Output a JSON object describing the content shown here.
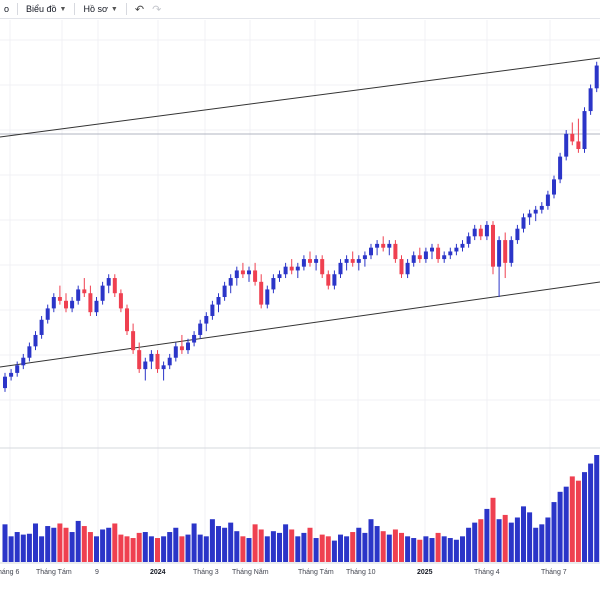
{
  "toolbar": {
    "items": [
      {
        "label": "o",
        "has_chevron": false
      },
      {
        "label": "Biểu đồ",
        "has_chevron": true
      },
      {
        "label": "Hồ sơ",
        "has_chevron": true
      }
    ],
    "undo_icon": "undo-icon",
    "redo_icon": "redo-icon"
  },
  "colors": {
    "up": "#2b35c8",
    "down": "#ef4050",
    "trendline": "#333333",
    "hline": "#b0b4c0",
    "grid": "#f0f1f4",
    "separator": "#d6d8de"
  },
  "chart_data": {
    "type": "candlestick",
    "x_axis": {
      "labels": [
        {
          "text": "háng 6",
          "bold": false
        },
        {
          "text": "Tháng Tám",
          "bold": false
        },
        {
          "text": "9",
          "bold": false
        },
        {
          "text": "2024",
          "bold": true
        },
        {
          "text": "Tháng 3",
          "bold": false
        },
        {
          "text": "Tháng Năm",
          "bold": false
        },
        {
          "text": "Tháng Tám",
          "bold": false
        },
        {
          "text": "Tháng 10",
          "bold": false
        },
        {
          "text": "2025",
          "bold": true
        },
        {
          "text": "Tháng 4",
          "bold": false
        },
        {
          "text": "Tháng 7",
          "bold": false
        }
      ]
    },
    "price_range": [
      0,
      100
    ],
    "volume_range": [
      0,
      100
    ],
    "candles": [
      [
        33,
        37,
        32,
        36,
        44
      ],
      [
        36,
        38,
        35,
        37,
        30
      ],
      [
        37,
        40,
        36,
        39,
        35
      ],
      [
        39,
        42,
        38,
        41,
        32
      ],
      [
        41,
        45,
        40,
        44,
        33
      ],
      [
        44,
        48,
        43,
        47,
        45
      ],
      [
        47,
        52,
        46,
        51,
        30
      ],
      [
        51,
        55,
        50,
        54,
        42
      ],
      [
        54,
        58,
        53,
        57,
        40
      ],
      [
        57,
        60,
        55,
        56,
        45
      ],
      [
        56,
        58,
        53,
        54,
        40
      ],
      [
        54,
        57,
        53,
        56,
        35
      ],
      [
        56,
        60,
        55,
        59,
        48
      ],
      [
        59,
        62,
        57,
        58,
        42
      ],
      [
        58,
        60,
        52,
        53,
        35
      ],
      [
        53,
        57,
        52,
        56,
        30
      ],
      [
        56,
        61,
        55,
        60,
        38
      ],
      [
        60,
        63,
        58,
        62,
        40
      ],
      [
        62,
        63,
        57,
        58,
        45
      ],
      [
        58,
        59,
        53,
        54,
        32
      ],
      [
        54,
        55,
        47,
        48,
        30
      ],
      [
        48,
        50,
        42,
        43,
        28
      ],
      [
        43,
        45,
        37,
        38,
        34
      ],
      [
        38,
        41,
        35,
        40,
        35
      ],
      [
        40,
        43,
        38,
        42,
        30
      ],
      [
        42,
        43,
        37,
        38,
        28
      ],
      [
        38,
        40,
        35,
        39,
        30
      ],
      [
        39,
        42,
        38,
        41,
        35
      ],
      [
        41,
        45,
        40,
        44,
        40
      ],
      [
        44,
        47,
        42,
        43,
        30
      ],
      [
        43,
        46,
        42,
        45,
        32
      ],
      [
        45,
        48,
        44,
        47,
        45
      ],
      [
        47,
        51,
        46,
        50,
        32
      ],
      [
        50,
        53,
        48,
        52,
        30
      ],
      [
        52,
        56,
        51,
        55,
        50
      ],
      [
        55,
        58,
        53,
        57,
        42
      ],
      [
        57,
        61,
        56,
        60,
        40
      ],
      [
        60,
        63,
        58,
        62,
        46
      ],
      [
        62,
        65,
        60,
        64,
        36
      ],
      [
        64,
        66,
        62,
        63,
        30
      ],
      [
        63,
        65,
        61,
        64,
        28
      ],
      [
        64,
        66,
        60,
        61,
        44
      ],
      [
        61,
        63,
        54,
        55,
        38
      ],
      [
        55,
        60,
        54,
        59,
        30
      ],
      [
        59,
        63,
        58,
        62,
        36
      ],
      [
        62,
        64,
        61,
        63,
        34
      ],
      [
        63,
        66,
        62,
        65,
        44
      ],
      [
        65,
        67,
        63,
        64,
        38
      ],
      [
        64,
        66,
        62,
        65,
        30
      ],
      [
        65,
        68,
        64,
        67,
        34
      ],
      [
        67,
        69,
        65,
        66,
        40
      ],
      [
        66,
        68,
        64,
        67,
        28
      ],
      [
        67,
        68,
        62,
        63,
        32
      ],
      [
        63,
        64,
        59,
        60,
        30
      ],
      [
        60,
        64,
        59,
        63,
        25
      ],
      [
        63,
        67,
        62,
        66,
        32
      ],
      [
        66,
        68,
        64,
        67,
        30
      ],
      [
        67,
        69,
        65,
        66,
        35
      ],
      [
        66,
        68,
        64,
        67,
        40
      ],
      [
        67,
        69,
        65,
        68,
        34
      ],
      [
        68,
        71,
        67,
        70,
        50
      ],
      [
        70,
        72,
        68,
        71,
        42
      ],
      [
        71,
        73,
        69,
        70,
        36
      ],
      [
        70,
        72,
        68,
        71,
        32
      ],
      [
        71,
        72,
        66,
        67,
        38
      ],
      [
        67,
        68,
        62,
        63,
        34
      ],
      [
        63,
        67,
        62,
        66,
        30
      ],
      [
        66,
        69,
        65,
        68,
        28
      ],
      [
        68,
        70,
        66,
        67,
        26
      ],
      [
        67,
        70,
        66,
        69,
        30
      ],
      [
        69,
        71,
        67,
        70,
        28
      ],
      [
        70,
        71,
        66,
        67,
        34
      ],
      [
        67,
        69,
        66,
        68,
        30
      ],
      [
        68,
        70,
        67,
        69,
        28
      ],
      [
        69,
        71,
        68,
        70,
        26
      ],
      [
        70,
        72,
        69,
        71,
        30
      ],
      [
        71,
        74,
        70,
        73,
        40
      ],
      [
        73,
        76,
        72,
        75,
        46
      ],
      [
        75,
        76,
        72,
        73,
        50
      ],
      [
        73,
        77,
        72,
        76,
        62
      ],
      [
        76,
        77,
        63,
        65,
        75
      ],
      [
        65,
        73,
        57,
        72,
        50
      ],
      [
        72,
        74,
        62,
        66,
        55
      ],
      [
        66,
        73,
        65,
        72,
        46
      ],
      [
        72,
        76,
        71,
        75,
        52
      ],
      [
        75,
        79,
        74,
        78,
        65
      ],
      [
        78,
        80,
        76,
        79,
        58
      ],
      [
        79,
        81,
        77,
        80,
        40
      ],
      [
        80,
        82,
        79,
        81,
        44
      ],
      [
        81,
        85,
        80,
        84,
        52
      ],
      [
        84,
        89,
        83,
        88,
        70
      ],
      [
        88,
        95,
        87,
        94,
        82
      ],
      [
        94,
        101,
        93,
        100,
        88
      ],
      [
        100,
        103,
        97,
        98,
        100
      ],
      [
        98,
        104,
        95,
        96,
        95
      ],
      [
        96,
        107,
        95,
        106,
        105
      ],
      [
        106,
        113,
        105,
        112,
        115
      ],
      [
        112,
        119,
        111,
        118,
        125
      ],
      [
        118,
        121,
        115,
        120,
        90
      ],
      [
        120,
        124,
        118,
        122,
        75
      ]
    ]
  }
}
